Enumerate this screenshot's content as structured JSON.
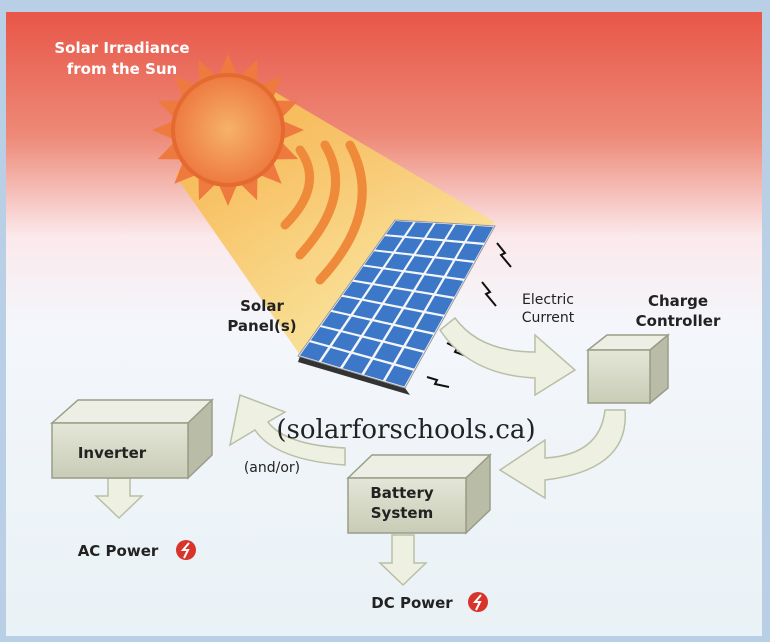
{
  "title": [
    "Solar Irradiance",
    "from the Sun"
  ],
  "nodes": [
    {
      "label": [
        "Solar",
        "Panel(s)"
      ]
    },
    {
      "label": [
        "Electric",
        "Current"
      ]
    },
    {
      "label": [
        "Charge",
        "Controller"
      ]
    },
    {
      "label": [
        "Inverter"
      ]
    },
    {
      "label": [
        "(and/or)"
      ]
    },
    {
      "label": [
        "Battery",
        "System"
      ]
    },
    {
      "label": [
        "AC Power"
      ]
    },
    {
      "label": [
        "DC Power"
      ]
    }
  ],
  "watermark": "(solarforschools.ca)"
}
